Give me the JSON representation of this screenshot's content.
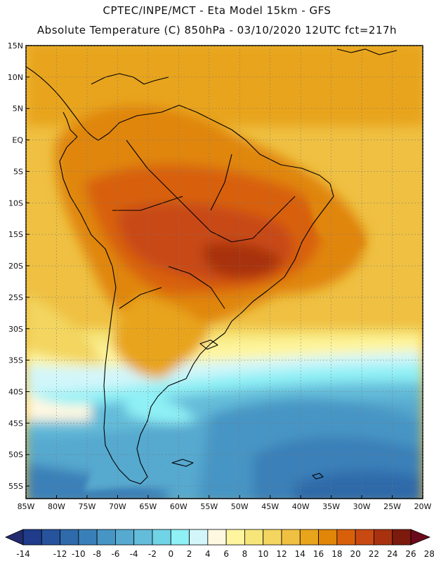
{
  "header": {
    "line1": "CPTEC/INPE/MCT -  Eta Model 15km - GFS",
    "line2": "Absolute Temperature (C) 850hPa - 03/10/2020 12UTC fct=217h"
  },
  "map": {
    "lat_labels": [
      "15N",
      "10N",
      "5N",
      "EQ",
      "5S",
      "10S",
      "15S",
      "20S",
      "25S",
      "30S",
      "35S",
      "40S",
      "45S",
      "50S",
      "55S"
    ],
    "lon_labels": [
      "85W",
      "80W",
      "75W",
      "70W",
      "65W",
      "60W",
      "55W",
      "50W",
      "45W",
      "40W",
      "35W",
      "30W",
      "25W",
      "20W"
    ],
    "lat_range": [
      15,
      -57
    ],
    "lon_range": [
      -85,
      -20
    ]
  },
  "colorbar": {
    "labels": [
      "-14",
      "-12",
      "-10",
      "-8",
      "-6",
      "-4",
      "-2",
      "0",
      "2",
      "4",
      "6",
      "8",
      "10",
      "12",
      "14",
      "16",
      "18",
      "20",
      "22",
      "24",
      "26",
      "28"
    ],
    "colors": [
      "#1f3b8a",
      "#26539c",
      "#2f6aaa",
      "#3a80b8",
      "#4795c4",
      "#56a9cf",
      "#63bcd9",
      "#71d3e6",
      "#8ff0f5",
      "#d2f6fa",
      "#fff8e1",
      "#fff59e",
      "#f6e67a",
      "#f3d560",
      "#efc042",
      "#e8a41a",
      "#e08608",
      "#d8600b",
      "#c84a12",
      "#a8320f",
      "#7c1a0d"
    ],
    "under_color": "#222b6e",
    "over_color": "#6b0a1a"
  }
}
